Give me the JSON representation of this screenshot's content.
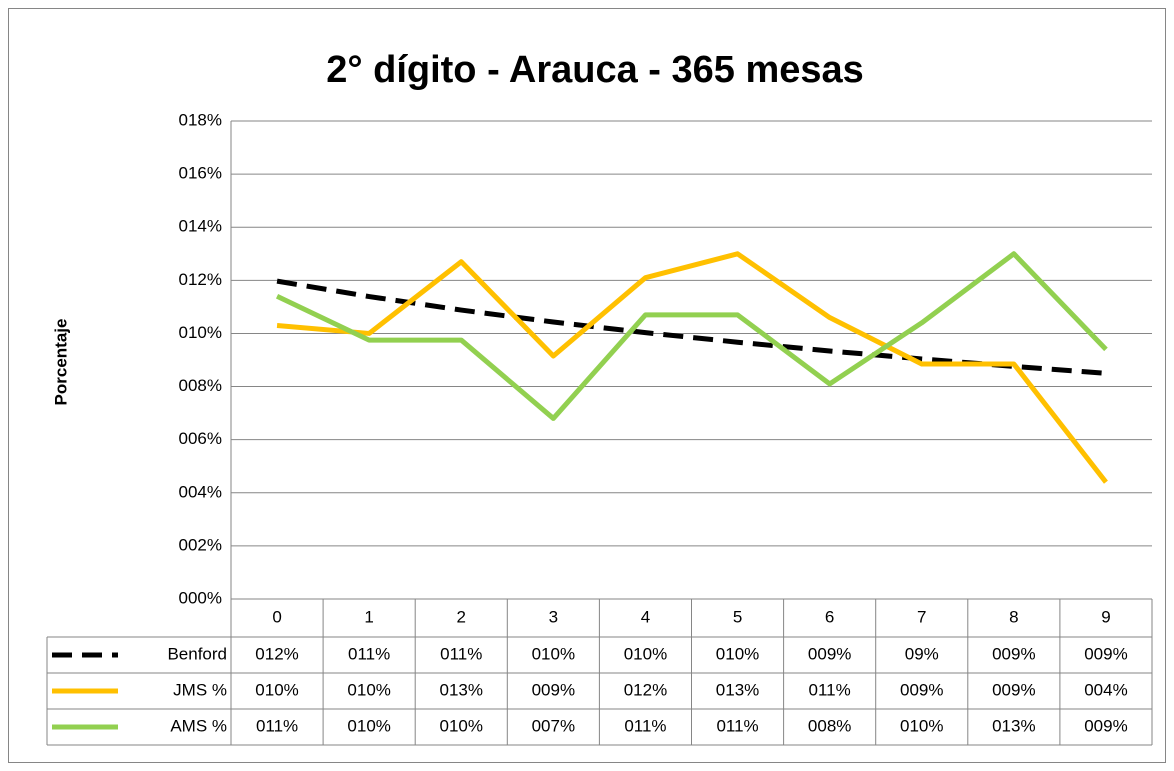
{
  "chart_data": {
    "type": "line",
    "title": "2° dígito - Arauca - 365 mesas",
    "y_label": "Porcentaje",
    "categories": [
      "0",
      "1",
      "2",
      "3",
      "4",
      "5",
      "6",
      "7",
      "8",
      "9"
    ],
    "series": [
      {
        "name": "Benford",
        "color": "#000000",
        "dashed": true,
        "values": [
          11.97,
          11.39,
          10.88,
          10.43,
          10.03,
          9.67,
          9.34,
          9.04,
          8.76,
          8.5
        ],
        "value_labels": [
          "012%",
          "011%",
          "011%",
          "010%",
          "010%",
          "010%",
          "009%",
          "09%",
          "009%",
          "009%"
        ]
      },
      {
        "name": "JMS %",
        "color": "#ffc000",
        "dashed": false,
        "values": [
          10.3,
          10.0,
          12.7,
          9.15,
          12.1,
          13.0,
          10.6,
          8.85,
          8.85,
          4.4
        ],
        "value_labels": [
          "010%",
          "010%",
          "013%",
          "009%",
          "012%",
          "013%",
          "011%",
          "009%",
          "009%",
          "004%"
        ]
      },
      {
        "name": "AMS %",
        "color": "#92d050",
        "dashed": false,
        "values": [
          11.4,
          9.75,
          9.75,
          6.8,
          10.7,
          10.7,
          8.1,
          10.4,
          13.0,
          9.4
        ],
        "value_labels": [
          "011%",
          "010%",
          "010%",
          "007%",
          "011%",
          "011%",
          "008%",
          "010%",
          "013%",
          "009%"
        ]
      }
    ],
    "ylim": [
      0,
      18
    ],
    "yticks": [
      {
        "value": 0,
        "label": "000%"
      },
      {
        "value": 2,
        "label": "002%"
      },
      {
        "value": 4,
        "label": "004%"
      },
      {
        "value": 6,
        "label": "006%"
      },
      {
        "value": 8,
        "label": "008%"
      },
      {
        "value": 10,
        "label": "010%"
      },
      {
        "value": 12,
        "label": "012%"
      },
      {
        "value": 14,
        "label": "014%"
      },
      {
        "value": 16,
        "label": "016%"
      },
      {
        "value": 18,
        "label": "018%"
      }
    ],
    "grid": true
  }
}
